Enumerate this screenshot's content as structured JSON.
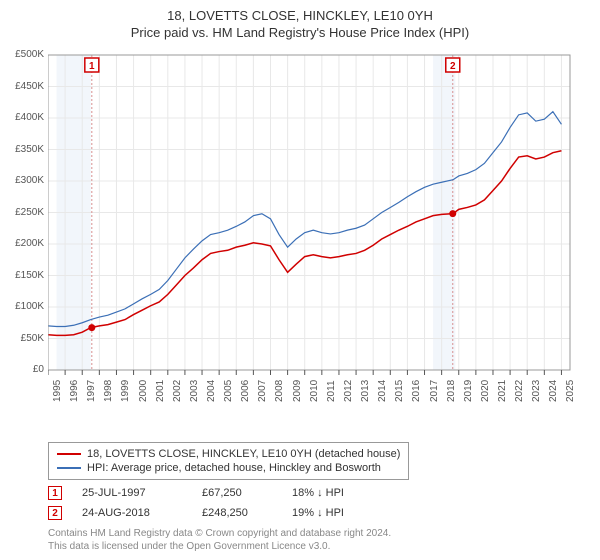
{
  "title_line1": "18, LOVETTS CLOSE, HINCKLEY, LE10 0YH",
  "title_line2": "Price paid vs. HM Land Registry's House Price Index (HPI)",
  "chart": {
    "type": "line",
    "background_color": "#ffffff",
    "plot_bg_color": "#ffffff",
    "grid_color": "#e8e8e8",
    "border_color": "#999999",
    "label_fontsize": 10,
    "title_fontsize": 13,
    "x_years": [
      1995,
      1996,
      1997,
      1998,
      1999,
      2000,
      2001,
      2002,
      2003,
      2004,
      2005,
      2006,
      2007,
      2008,
      2009,
      2010,
      2011,
      2012,
      2013,
      2014,
      2015,
      2016,
      2017,
      2018,
      2019,
      2020,
      2021,
      2022,
      2023,
      2024,
      2025
    ],
    "xlim": [
      1995,
      2025.5
    ],
    "ylim": [
      0,
      500000
    ],
    "ytick_step": 50000,
    "ytick_labels": [
      "£0",
      "£50K",
      "£100K",
      "£150K",
      "£200K",
      "£250K",
      "£300K",
      "£350K",
      "£400K",
      "£450K",
      "£500K"
    ],
    "series": [
      {
        "name": "property",
        "label": "18, LOVETTS CLOSE, HINCKLEY, LE10 0YH (detached house)",
        "color": "#d00000",
        "line_width": 1.5,
        "points": [
          [
            1995,
            56000
          ],
          [
            1995.5,
            55000
          ],
          [
            1996,
            55000
          ],
          [
            1996.5,
            56000
          ],
          [
            1997,
            60000
          ],
          [
            1997.5,
            67250
          ],
          [
            1998,
            70000
          ],
          [
            1998.5,
            72000
          ],
          [
            1999,
            76000
          ],
          [
            1999.5,
            80000
          ],
          [
            2000,
            88000
          ],
          [
            2000.5,
            95000
          ],
          [
            2001,
            102000
          ],
          [
            2001.5,
            108000
          ],
          [
            2002,
            120000
          ],
          [
            2002.5,
            135000
          ],
          [
            2003,
            150000
          ],
          [
            2003.5,
            162000
          ],
          [
            2004,
            175000
          ],
          [
            2004.5,
            185000
          ],
          [
            2005,
            188000
          ],
          [
            2005.5,
            190000
          ],
          [
            2006,
            195000
          ],
          [
            2006.5,
            198000
          ],
          [
            2007,
            202000
          ],
          [
            2007.5,
            200000
          ],
          [
            2008,
            197000
          ],
          [
            2008.5,
            175000
          ],
          [
            2009,
            155000
          ],
          [
            2009.5,
            168000
          ],
          [
            2010,
            180000
          ],
          [
            2010.5,
            183000
          ],
          [
            2011,
            180000
          ],
          [
            2011.5,
            178000
          ],
          [
            2012,
            180000
          ],
          [
            2012.5,
            183000
          ],
          [
            2013,
            185000
          ],
          [
            2013.5,
            190000
          ],
          [
            2014,
            198000
          ],
          [
            2014.5,
            208000
          ],
          [
            2015,
            215000
          ],
          [
            2015.5,
            222000
          ],
          [
            2016,
            228000
          ],
          [
            2016.5,
            235000
          ],
          [
            2017,
            240000
          ],
          [
            2017.5,
            245000
          ],
          [
            2018,
            247000
          ],
          [
            2018.67,
            248250
          ],
          [
            2019,
            255000
          ],
          [
            2019.5,
            258000
          ],
          [
            2020,
            262000
          ],
          [
            2020.5,
            270000
          ],
          [
            2021,
            285000
          ],
          [
            2021.5,
            300000
          ],
          [
            2022,
            320000
          ],
          [
            2022.5,
            338000
          ],
          [
            2023,
            340000
          ],
          [
            2023.5,
            335000
          ],
          [
            2024,
            338000
          ],
          [
            2024.5,
            345000
          ],
          [
            2025,
            348000
          ]
        ]
      },
      {
        "name": "hpi",
        "label": "HPI: Average price, detached house, Hinckley and Bosworth",
        "color": "#3b6fb6",
        "line_width": 1.2,
        "points": [
          [
            1995,
            70000
          ],
          [
            1995.5,
            69000
          ],
          [
            1996,
            69000
          ],
          [
            1996.5,
            71000
          ],
          [
            1997,
            75000
          ],
          [
            1997.5,
            80000
          ],
          [
            1998,
            84000
          ],
          [
            1998.5,
            87000
          ],
          [
            1999,
            92000
          ],
          [
            1999.5,
            97000
          ],
          [
            2000,
            105000
          ],
          [
            2000.5,
            113000
          ],
          [
            2001,
            120000
          ],
          [
            2001.5,
            128000
          ],
          [
            2002,
            142000
          ],
          [
            2002.5,
            160000
          ],
          [
            2003,
            178000
          ],
          [
            2003.5,
            192000
          ],
          [
            2004,
            205000
          ],
          [
            2004.5,
            215000
          ],
          [
            2005,
            218000
          ],
          [
            2005.5,
            222000
          ],
          [
            2006,
            228000
          ],
          [
            2006.5,
            235000
          ],
          [
            2007,
            245000
          ],
          [
            2007.5,
            248000
          ],
          [
            2008,
            240000
          ],
          [
            2008.5,
            215000
          ],
          [
            2009,
            195000
          ],
          [
            2009.5,
            208000
          ],
          [
            2010,
            218000
          ],
          [
            2010.5,
            222000
          ],
          [
            2011,
            218000
          ],
          [
            2011.5,
            216000
          ],
          [
            2012,
            218000
          ],
          [
            2012.5,
            222000
          ],
          [
            2013,
            225000
          ],
          [
            2013.5,
            230000
          ],
          [
            2014,
            240000
          ],
          [
            2014.5,
            250000
          ],
          [
            2015,
            258000
          ],
          [
            2015.5,
            266000
          ],
          [
            2016,
            275000
          ],
          [
            2016.5,
            283000
          ],
          [
            2017,
            290000
          ],
          [
            2017.5,
            295000
          ],
          [
            2018,
            298000
          ],
          [
            2018.67,
            302000
          ],
          [
            2019,
            308000
          ],
          [
            2019.5,
            312000
          ],
          [
            2020,
            318000
          ],
          [
            2020.5,
            328000
          ],
          [
            2021,
            345000
          ],
          [
            2021.5,
            362000
          ],
          [
            2022,
            385000
          ],
          [
            2022.5,
            405000
          ],
          [
            2023,
            408000
          ],
          [
            2023.5,
            395000
          ],
          [
            2024,
            398000
          ],
          [
            2024.5,
            410000
          ],
          [
            2025,
            390000
          ]
        ]
      }
    ],
    "shaded_bands": [
      {
        "x_from": 1995.5,
        "x_to": 1997.5,
        "color": "#f2f6fb"
      },
      {
        "x_from": 2017.5,
        "x_to": 2018.8,
        "color": "#f2f6fb"
      }
    ],
    "sale_markers": [
      {
        "n": "1",
        "x": 1997.56,
        "y": 67250,
        "line_color": "#d89090"
      },
      {
        "n": "2",
        "x": 2018.65,
        "y": 248250,
        "line_color": "#d89090"
      }
    ]
  },
  "legend": {
    "border_color": "#999999",
    "fontsize": 11
  },
  "sales": [
    {
      "n": "1",
      "date": "25-JUL-1997",
      "price": "£67,250",
      "hpi_diff": "18% ↓ HPI"
    },
    {
      "n": "2",
      "date": "24-AUG-2018",
      "price": "£248,250",
      "hpi_diff": "19% ↓ HPI"
    }
  ],
  "footer_line1": "Contains HM Land Registry data © Crown copyright and database right 2024.",
  "footer_line2": "This data is licensed under the Open Government Licence v3.0."
}
